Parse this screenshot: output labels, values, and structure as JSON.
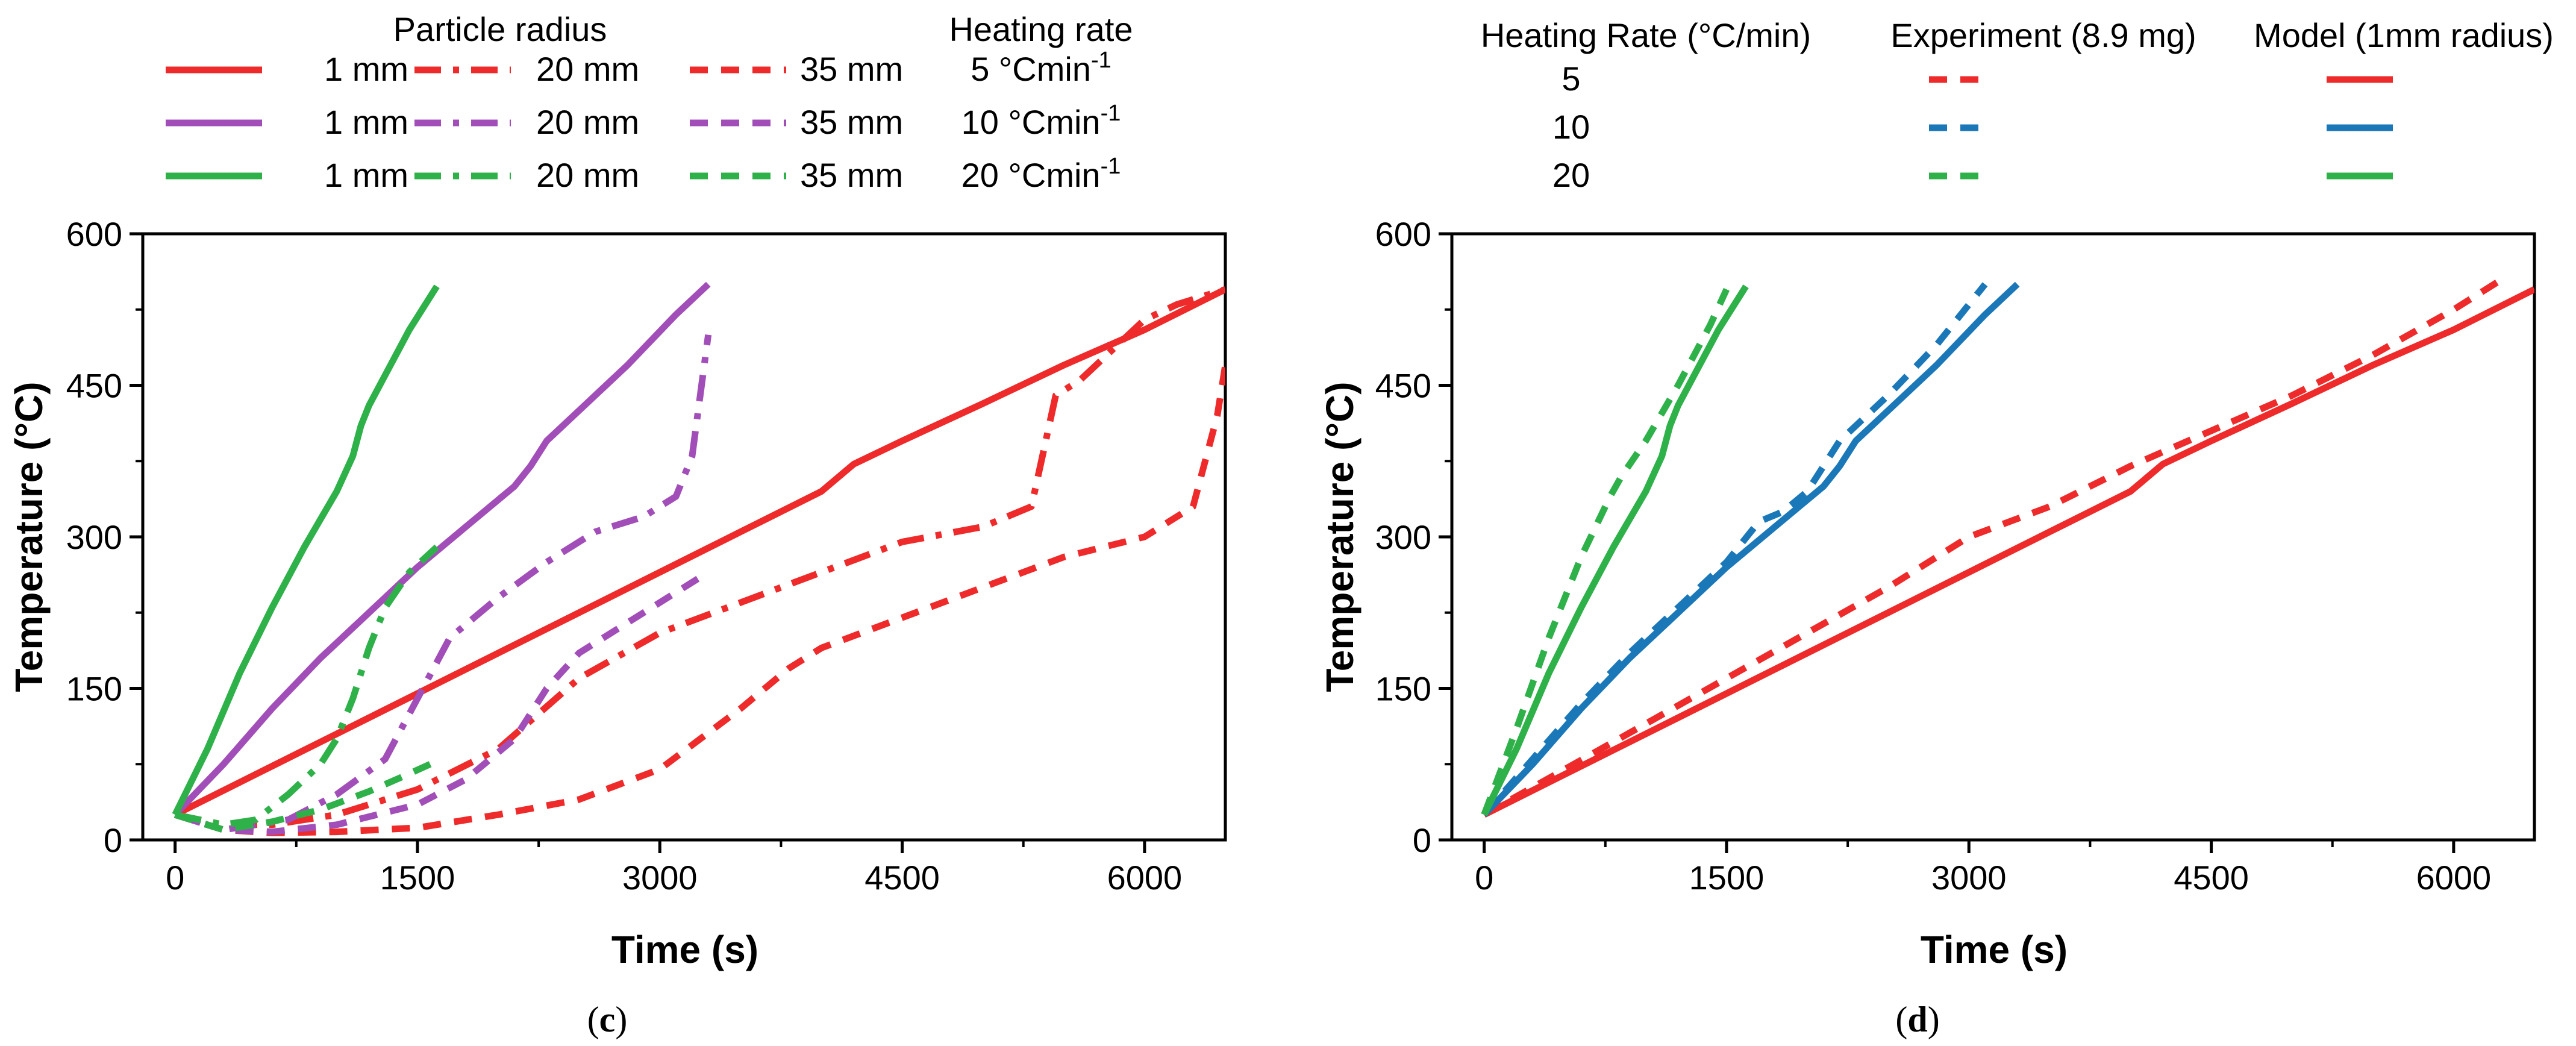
{
  "chart_data": [
    {
      "panel": "c",
      "type": "line",
      "xlabel": "Time (s)",
      "ylabel": "Temperature (°C)",
      "xlim": [
        -200,
        6500
      ],
      "ylim": [
        0,
        600
      ],
      "xticks": [
        0,
        1500,
        3000,
        4500,
        6000
      ],
      "yticks": [
        0,
        150,
        300,
        450,
        600
      ],
      "legend": {
        "header_radius": "Particle radius",
        "header_rate": "Heating rate",
        "rows": [
          {
            "color": "#ee2a2a",
            "solid": "1 mm",
            "dashdot": "20 mm",
            "dash": "35 mm",
            "rate_num": "5",
            "rate_unit_pre": "°Cmin",
            "rate_exp": "-1"
          },
          {
            "color": "#a24eb8",
            "solid": "1 mm",
            "dashdot": "20 mm",
            "dash": "35 mm",
            "rate_num": "10",
            "rate_unit_pre": "°Cmin",
            "rate_exp": "-1"
          },
          {
            "color": "#2fb14a",
            "solid": "1 mm",
            "dashdot": "20 mm",
            "dash": "35 mm",
            "rate_num": "20",
            "rate_unit_pre": "°Cmin",
            "rate_exp": "-1"
          }
        ]
      },
      "series": [
        {
          "name": "1 mm, 5 °C/min",
          "color": "#ee2a2a",
          "style": "solid",
          "x": [
            0,
            500,
            1000,
            1500,
            2000,
            2500,
            3000,
            3500,
            4000,
            4200,
            4500,
            5000,
            5500,
            6000,
            6500
          ],
          "y": [
            25,
            65,
            105,
            145,
            185,
            225,
            265,
            305,
            345,
            372,
            395,
            432,
            470,
            505,
            545
          ]
        },
        {
          "name": "20 mm, 5 °C/min",
          "color": "#ee2a2a",
          "style": "dashdot",
          "x": [
            0,
            300,
            600,
            1000,
            1500,
            2000,
            2500,
            3000,
            3500,
            4000,
            4500,
            5000,
            5300,
            5450,
            5600,
            6000,
            6200,
            6500
          ],
          "y": [
            25,
            15,
            15,
            25,
            50,
            90,
            160,
            205,
            235,
            265,
            295,
            310,
            330,
            440,
            455,
            515,
            530,
            545
          ]
        },
        {
          "name": "35 mm, 5 °C/min",
          "color": "#ee2a2a",
          "style": "dash",
          "x": [
            0,
            300,
            600,
            1000,
            1500,
            2000,
            2500,
            3000,
            3500,
            3800,
            4000,
            4500,
            5000,
            5500,
            6000,
            6300,
            6450,
            6500
          ],
          "y": [
            25,
            10,
            7,
            8,
            12,
            25,
            40,
            70,
            130,
            170,
            190,
            220,
            250,
            280,
            300,
            330,
            420,
            470
          ]
        },
        {
          "name": "1 mm, 10 °C/min",
          "color": "#a24eb8",
          "style": "solid",
          "x": [
            0,
            300,
            600,
            900,
            1200,
            1500,
            1800,
            2100,
            2200,
            2300,
            2500,
            2800,
            3100,
            3300
          ],
          "y": [
            25,
            75,
            130,
            180,
            225,
            270,
            310,
            350,
            370,
            395,
            425,
            470,
            520,
            550
          ]
        },
        {
          "name": "20 mm, 10 °C/min",
          "color": "#a24eb8",
          "style": "dashdot",
          "x": [
            0,
            300,
            700,
            1000,
            1300,
            1500,
            1700,
            2000,
            2300,
            2600,
            2900,
            3100,
            3200,
            3250,
            3300
          ],
          "y": [
            25,
            10,
            20,
            45,
            80,
            140,
            200,
            240,
            275,
            305,
            320,
            340,
            380,
            440,
            500
          ]
        },
        {
          "name": "35 mm, 10 °C/min",
          "color": "#a24eb8",
          "style": "dash",
          "x": [
            0,
            300,
            600,
            1000,
            1500,
            1800,
            2100,
            2300,
            2500,
            2800,
            3100,
            3300
          ],
          "y": [
            25,
            10,
            8,
            15,
            35,
            60,
            100,
            150,
            185,
            215,
            245,
            265
          ]
        },
        {
          "name": "1 mm, 20 °C/min",
          "color": "#2fb14a",
          "style": "solid",
          "x": [
            0,
            200,
            400,
            600,
            800,
            1000,
            1100,
            1150,
            1200,
            1300,
            1450,
            1620
          ],
          "y": [
            25,
            90,
            165,
            230,
            290,
            345,
            380,
            410,
            430,
            460,
            505,
            548
          ]
        },
        {
          "name": "20 mm, 20 °C/min",
          "color": "#2fb14a",
          "style": "dashdot",
          "x": [
            0,
            300,
            500,
            700,
            900,
            1000,
            1100,
            1200,
            1300,
            1450,
            1620
          ],
          "y": [
            25,
            15,
            20,
            45,
            75,
            100,
            140,
            190,
            230,
            265,
            290
          ]
        },
        {
          "name": "35 mm, 20 °C/min",
          "color": "#2fb14a",
          "style": "dash",
          "x": [
            0,
            300,
            600,
            900,
            1200,
            1400,
            1620
          ],
          "y": [
            25,
            10,
            18,
            30,
            48,
            62,
            78
          ]
        }
      ]
    },
    {
      "panel": "d",
      "type": "line",
      "xlabel": "Time (s)",
      "ylabel": "Temperature (°C)",
      "xlim": [
        -200,
        6500
      ],
      "ylim": [
        0,
        600
      ],
      "xticks": [
        0,
        1500,
        3000,
        4500,
        6000
      ],
      "yticks": [
        0,
        150,
        300,
        450,
        600
      ],
      "legend": {
        "headers": [
          "Heating Rate (°C/min)",
          "Experiment (8.9 mg)",
          "Model (1mm radius)"
        ],
        "rows": [
          {
            "rate": "5",
            "color": "#ee2a2a"
          },
          {
            "rate": "10",
            "color": "#1b78b8"
          },
          {
            "rate": "20",
            "color": "#2fb14a"
          }
        ]
      },
      "series": [
        {
          "name": "Experiment 5 °C/min",
          "color": "#ee2a2a",
          "style": "dash",
          "x": [
            0,
            500,
            1000,
            1500,
            2000,
            2500,
            3000,
            3500,
            4000,
            4500,
            5000,
            5500,
            6000,
            6300
          ],
          "y": [
            25,
            70,
            115,
            160,
            205,
            250,
            300,
            330,
            370,
            405,
            440,
            480,
            525,
            555
          ]
        },
        {
          "name": "Model 5 °C/min",
          "color": "#ee2a2a",
          "style": "solid",
          "x": [
            0,
            500,
            1000,
            1500,
            2000,
            2500,
            3000,
            3500,
            4000,
            4200,
            4500,
            5000,
            5500,
            6000,
            6500
          ],
          "y": [
            25,
            65,
            105,
            145,
            185,
            225,
            265,
            305,
            345,
            372,
            395,
            432,
            470,
            505,
            545
          ]
        },
        {
          "name": "Experiment 10 °C/min",
          "color": "#1b78b8",
          "style": "dash",
          "x": [
            0,
            300,
            600,
            900,
            1200,
            1500,
            1700,
            1850,
            2000,
            2200,
            2500,
            2800,
            3100
          ],
          "y": [
            25,
            80,
            135,
            185,
            230,
            275,
            315,
            325,
            345,
            395,
            440,
            490,
            550
          ]
        },
        {
          "name": "Model 10 °C/min",
          "color": "#1b78b8",
          "style": "solid",
          "x": [
            0,
            300,
            600,
            900,
            1200,
            1500,
            1800,
            2100,
            2200,
            2300,
            2500,
            2800,
            3100,
            3300
          ],
          "y": [
            25,
            75,
            130,
            180,
            225,
            270,
            310,
            350,
            370,
            395,
            425,
            470,
            520,
            550
          ]
        },
        {
          "name": "Experiment 20 °C/min",
          "color": "#2fb14a",
          "style": "dash",
          "x": [
            0,
            200,
            400,
            600,
            780,
            850,
            1000,
            1200,
            1400,
            1500
          ],
          "y": [
            25,
            110,
            200,
            280,
            340,
            360,
            395,
            450,
            510,
            545
          ]
        },
        {
          "name": "Model 20 °C/min",
          "color": "#2fb14a",
          "style": "solid",
          "x": [
            0,
            200,
            400,
            600,
            800,
            1000,
            1100,
            1150,
            1200,
            1300,
            1450,
            1620
          ],
          "y": [
            25,
            90,
            165,
            230,
            290,
            345,
            380,
            410,
            430,
            460,
            505,
            548
          ]
        }
      ]
    }
  ],
  "panel_labels": {
    "c": "c",
    "d": "d"
  }
}
